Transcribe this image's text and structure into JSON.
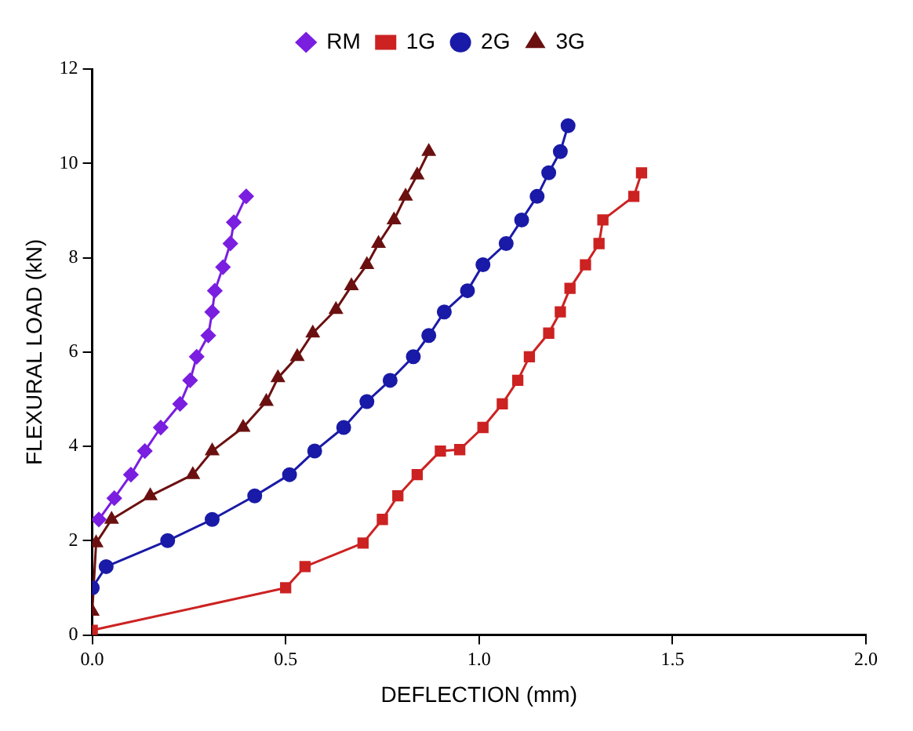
{
  "chart_data": {
    "type": "line",
    "xlabel": "DEFLECTION (mm)",
    "ylabel": "FLEXURAL LOAD (kN)",
    "xlim": [
      0,
      2
    ],
    "xticks": [
      {
        "value": 0,
        "label": "0.0"
      },
      {
        "value": 0.5,
        "label": "0.5"
      },
      {
        "value": 1,
        "label": "1.0"
      },
      {
        "value": 1.5,
        "label": "1.5"
      },
      {
        "value": 2,
        "label": "2.0"
      }
    ],
    "ylim": [
      0,
      12
    ],
    "yticks": [
      0,
      2,
      4,
      6,
      8,
      10,
      12
    ],
    "grid": false,
    "legend": "top",
    "line_style": "solid",
    "series": [
      {
        "name": "RM",
        "color": "#7a1ee0",
        "marker": "diamond",
        "x": [
          0.017,
          0.057,
          0.1,
          0.136,
          0.177,
          0.227,
          0.253,
          0.27,
          0.3,
          0.31,
          0.317,
          0.338,
          0.357,
          0.366,
          0.398
        ],
        "values": [
          2.45,
          2.9,
          3.4,
          3.9,
          4.4,
          4.9,
          5.4,
          5.9,
          6.35,
          6.85,
          7.3,
          7.8,
          8.3,
          8.75,
          9.3
        ]
      },
      {
        "name": "1G",
        "color": "#cc2222",
        "marker": "square",
        "x": [
          0,
          0.5,
          0.55,
          0.7,
          0.75,
          0.79,
          0.84,
          0.9,
          0.95,
          1.01,
          1.06,
          1.1,
          1.13,
          1.18,
          1.21,
          1.235,
          1.275,
          1.31,
          1.32,
          1.4,
          1.42
        ],
        "values": [
          0.1,
          1.0,
          1.45,
          1.95,
          2.45,
          2.95,
          3.4,
          3.9,
          3.93,
          4.4,
          4.9,
          5.4,
          5.9,
          6.4,
          6.85,
          7.35,
          7.85,
          8.3,
          8.8,
          9.3,
          9.8
        ]
      },
      {
        "name": "2G",
        "color": "#1a1aa8",
        "marker": "circle",
        "x": [
          0,
          0.036,
          0.195,
          0.31,
          0.42,
          0.51,
          0.575,
          0.65,
          0.71,
          0.77,
          0.83,
          0.87,
          0.91,
          0.97,
          1.01,
          1.07,
          1.11,
          1.15,
          1.18,
          1.21,
          1.23
        ],
        "values": [
          1.0,
          1.45,
          2.0,
          2.45,
          2.95,
          3.4,
          3.9,
          4.4,
          4.95,
          5.4,
          5.9,
          6.35,
          6.85,
          7.3,
          7.85,
          8.3,
          8.8,
          9.3,
          9.8,
          10.25,
          10.8
        ]
      },
      {
        "name": "3G",
        "color": "#6b1010",
        "marker": "triangle",
        "x": [
          0,
          0.01,
          0.05,
          0.15,
          0.26,
          0.31,
          0.39,
          0.45,
          0.48,
          0.53,
          0.57,
          0.63,
          0.67,
          0.71,
          0.74,
          0.78,
          0.81,
          0.84,
          0.87
        ],
        "values": [
          0.5,
          1.95,
          2.45,
          2.95,
          3.4,
          3.9,
          4.4,
          4.95,
          5.45,
          5.9,
          6.4,
          6.9,
          7.4,
          7.85,
          8.3,
          8.8,
          9.3,
          9.75,
          10.25
        ]
      }
    ]
  }
}
